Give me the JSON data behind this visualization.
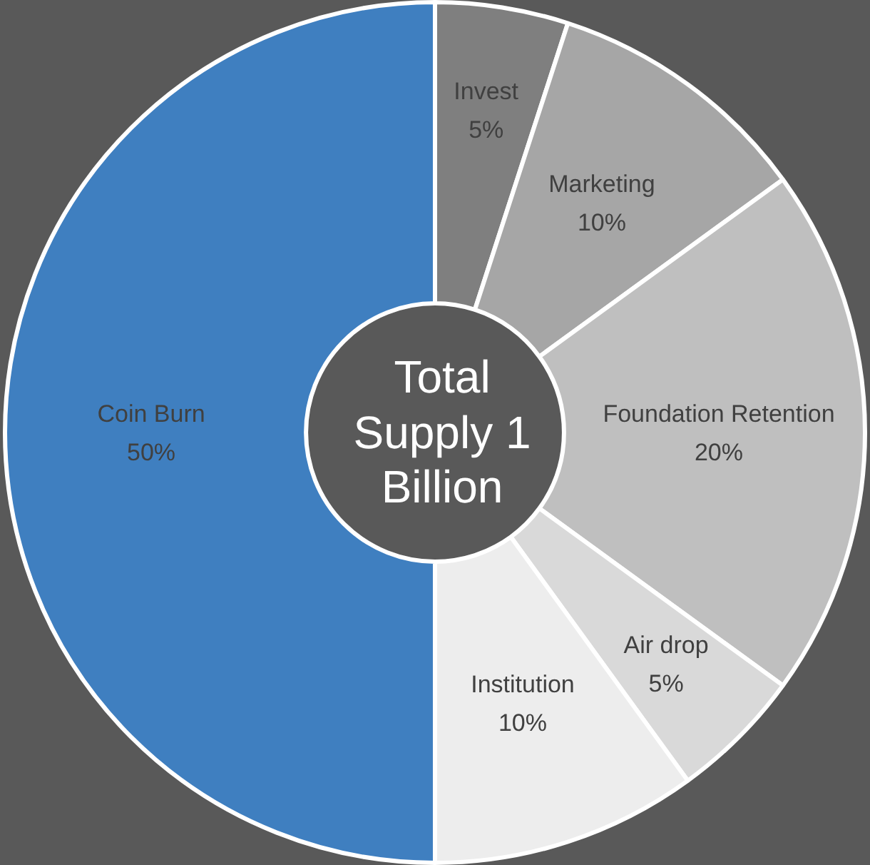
{
  "chart_data": {
    "type": "donut",
    "categories": [
      "Invest",
      "Marketing",
      "Foundation Retention",
      "Air drop",
      "Institution",
      "Coin Burn"
    ],
    "values": [
      5,
      10,
      20,
      5,
      10,
      50
    ],
    "value_labels": [
      "5%",
      "10%",
      "20%",
      "5%",
      "10%",
      "50%"
    ],
    "colors": [
      "#7f7f7f",
      "#a6a6a6",
      "#bfbfbf",
      "#d9d9d9",
      "#ededed",
      "#3f7fc0"
    ],
    "annotations": [
      "Total Supply 1 Billion"
    ],
    "legend": false
  }
}
